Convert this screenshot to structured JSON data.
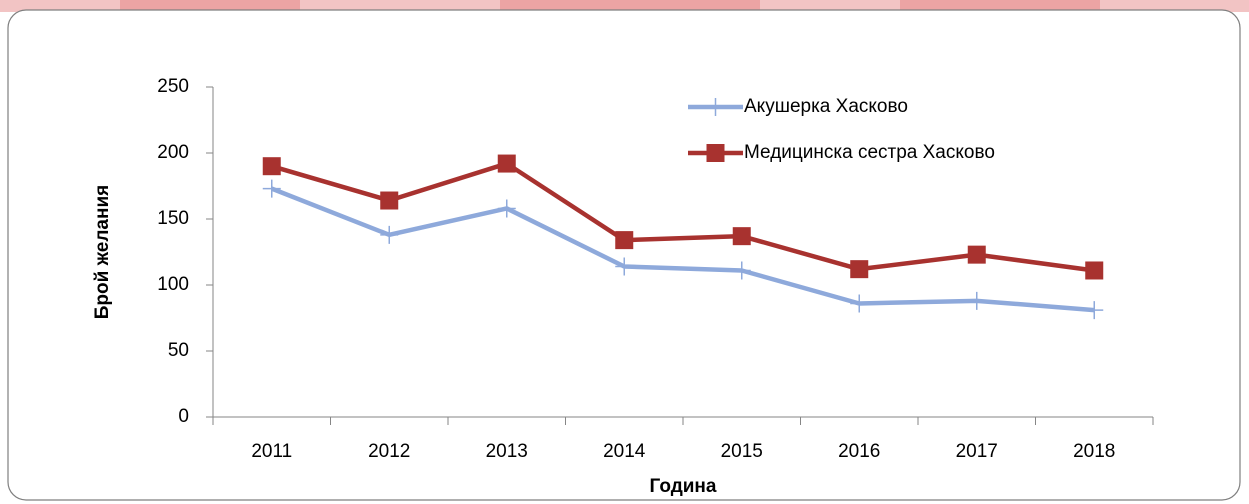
{
  "chart_data": {
    "type": "line",
    "categories": [
      "2011",
      "2012",
      "2013",
      "2014",
      "2015",
      "2016",
      "2017",
      "2018"
    ],
    "series": [
      {
        "name": "Акушерка Хасково",
        "color": "#8EA9DB",
        "marker": "plus",
        "values": [
          173,
          138,
          158,
          114,
          111,
          86,
          88,
          81
        ]
      },
      {
        "name": "Медицинска сестра Хасково",
        "color": "#A8322F",
        "marker": "square",
        "values": [
          190,
          164,
          192,
          134,
          137,
          112,
          123,
          111
        ]
      }
    ],
    "xlabel": "Година",
    "ylabel": "Брой желания",
    "ylim": [
      0,
      250
    ],
    "yticks": [
      0,
      50,
      100,
      150,
      200,
      250
    ],
    "grid": false,
    "legend": "upper right"
  }
}
